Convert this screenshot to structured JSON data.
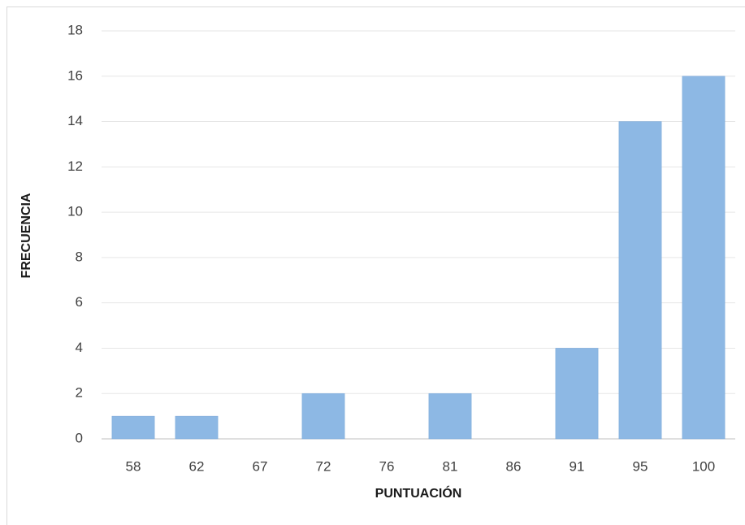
{
  "chart_data": {
    "type": "bar",
    "categories": [
      "58",
      "62",
      "67",
      "72",
      "76",
      "81",
      "86",
      "91",
      "95",
      "100"
    ],
    "values": [
      1,
      1,
      0,
      2,
      0,
      2,
      0,
      4,
      14,
      16
    ],
    "color": "#8db8e4",
    "xlabel": "PUNTUACIÓN",
    "ylabel": "FRECUENCIA",
    "ylim": [
      0,
      18
    ],
    "yticks": [
      0,
      2,
      4,
      6,
      8,
      10,
      12,
      14,
      16,
      18
    ],
    "grid": true
  }
}
